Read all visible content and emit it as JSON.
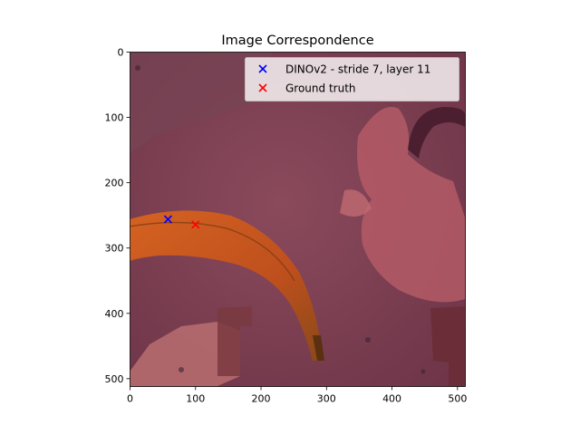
{
  "chart_data": {
    "type": "scatter",
    "title": "Image Correspondence",
    "background": "photograph overlay: orange banana on a reddish-purple patterned surface",
    "xlim": [
      0,
      512
    ],
    "ylim": [
      512,
      0
    ],
    "y_inverted": true,
    "xticks": [
      0,
      100,
      200,
      300,
      400,
      500
    ],
    "yticks": [
      0,
      100,
      200,
      300,
      400,
      500
    ],
    "grid": false,
    "legend_position": "top-right",
    "series": [
      {
        "name": "DINOv2 - stride 7, layer 11",
        "marker": "x",
        "color": "#0000ff",
        "points": [
          [
            58,
            256
          ]
        ]
      },
      {
        "name": "Ground truth",
        "marker": "x",
        "color": "#ff0000",
        "points": [
          [
            100,
            264
          ]
        ]
      }
    ]
  }
}
